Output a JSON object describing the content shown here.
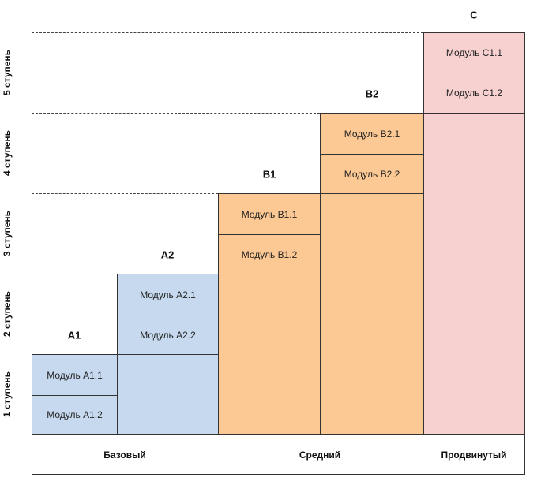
{
  "levels": {
    "a1": "A1",
    "a2": "A2",
    "b1": "B1",
    "b2": "B2",
    "c": "C"
  },
  "modules": {
    "a11": "Модуль A1.1",
    "a12": "Модуль A1.2",
    "a21": "Модуль A2.1",
    "a22": "Модуль A2.2",
    "b11": "Модуль B1.1",
    "b12": "Модуль B1.2",
    "b21": "Модуль B2.1",
    "b22": "Модуль B2.2",
    "c11": "Модуль C1.1",
    "c12": "Модуль C1.2"
  },
  "steps": [
    "1 ступень",
    "2 ступень",
    "3 ступень",
    "4 ступень",
    "5 ступень"
  ],
  "categories": {
    "basic": "Базовый",
    "middle": "Средний",
    "advanced": "Продвинутый"
  },
  "colors": {
    "basic": "#c6d9ef",
    "middle": "#fcc995",
    "advanced": "#f7d0d0"
  }
}
